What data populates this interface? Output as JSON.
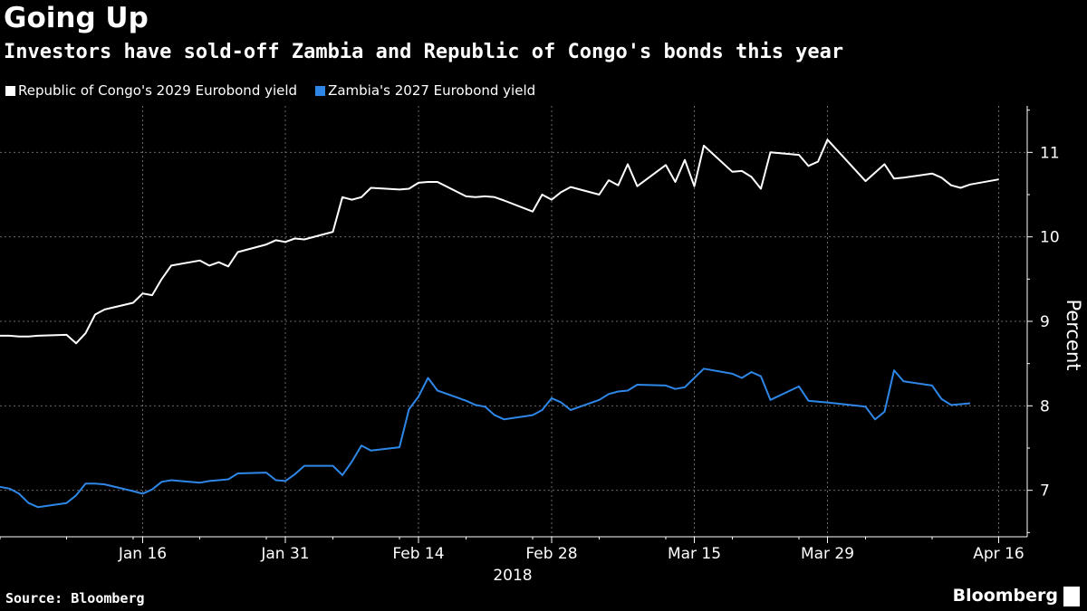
{
  "chart_data": {
    "type": "line",
    "title": "Going Up",
    "subtitle": "Investors have sold-off Zambia and Republic of Congo's bonds this year",
    "ylabel": "Percent",
    "xlabel": "2018",
    "ylim": [
      6.45,
      11.55
    ],
    "y_ticks": [
      7,
      8,
      9,
      10,
      11
    ],
    "x_range": [
      "2018-01-01",
      "2018-04-19"
    ],
    "x_ticks": [
      {
        "date": "2018-01-16",
        "label": "Jan 16"
      },
      {
        "date": "2018-01-31",
        "label": "Jan 31"
      },
      {
        "date": "2018-02-14",
        "label": "Feb 14"
      },
      {
        "date": "2018-02-28",
        "label": "Feb 28"
      },
      {
        "date": "2018-03-15",
        "label": "Mar 15"
      },
      {
        "date": "2018-03-29",
        "label": "Mar 29"
      },
      {
        "date": "2018-04-16",
        "label": "Apr 16"
      }
    ],
    "grid": true,
    "legend_position": "top-left",
    "series": [
      {
        "name": "Republic of Congo's 2029 Eurobond yield",
        "color": "#ffffff",
        "points": [
          [
            "2018-01-01",
            8.83
          ],
          [
            "2018-01-02",
            8.83
          ],
          [
            "2018-01-03",
            8.82
          ],
          [
            "2018-01-04",
            8.82
          ],
          [
            "2018-01-05",
            8.83
          ],
          [
            "2018-01-08",
            8.84
          ],
          [
            "2018-01-09",
            8.74
          ],
          [
            "2018-01-10",
            8.86
          ],
          [
            "2018-01-11",
            9.08
          ],
          [
            "2018-01-12",
            9.14
          ],
          [
            "2018-01-15",
            9.22
          ],
          [
            "2018-01-16",
            9.33
          ],
          [
            "2018-01-17",
            9.31
          ],
          [
            "2018-01-18",
            9.5
          ],
          [
            "2018-01-19",
            9.66
          ],
          [
            "2018-01-22",
            9.72
          ],
          [
            "2018-01-23",
            9.66
          ],
          [
            "2018-01-24",
            9.7
          ],
          [
            "2018-01-25",
            9.65
          ],
          [
            "2018-01-26",
            9.82
          ],
          [
            "2018-01-29",
            9.91
          ],
          [
            "2018-01-30",
            9.96
          ],
          [
            "2018-01-31",
            9.94
          ],
          [
            "2018-02-01",
            9.98
          ],
          [
            "2018-02-02",
            9.97
          ],
          [
            "2018-02-05",
            10.06
          ],
          [
            "2018-02-06",
            10.47
          ],
          [
            "2018-02-07",
            10.44
          ],
          [
            "2018-02-08",
            10.47
          ],
          [
            "2018-02-09",
            10.58
          ],
          [
            "2018-02-12",
            10.56
          ],
          [
            "2018-02-13",
            10.57
          ],
          [
            "2018-02-14",
            10.64
          ],
          [
            "2018-02-15",
            10.65
          ],
          [
            "2018-02-16",
            10.65
          ],
          [
            "2018-02-19",
            10.48
          ],
          [
            "2018-02-20",
            10.47
          ],
          [
            "2018-02-21",
            10.48
          ],
          [
            "2018-02-22",
            10.47
          ],
          [
            "2018-02-23",
            10.43
          ],
          [
            "2018-02-26",
            10.3
          ],
          [
            "2018-02-27",
            10.5
          ],
          [
            "2018-02-28",
            10.44
          ],
          [
            "2018-03-01",
            10.53
          ],
          [
            "2018-03-02",
            10.59
          ],
          [
            "2018-03-05",
            10.5
          ],
          [
            "2018-03-06",
            10.67
          ],
          [
            "2018-03-07",
            10.61
          ],
          [
            "2018-03-08",
            10.86
          ],
          [
            "2018-03-09",
            10.6
          ],
          [
            "2018-03-12",
            10.85
          ],
          [
            "2018-03-13",
            10.65
          ],
          [
            "2018-03-14",
            10.91
          ],
          [
            "2018-03-15",
            10.6
          ],
          [
            "2018-03-16",
            11.08
          ],
          [
            "2018-03-19",
            10.77
          ],
          [
            "2018-03-20",
            10.78
          ],
          [
            "2018-03-21",
            10.71
          ],
          [
            "2018-03-22",
            10.57
          ],
          [
            "2018-03-23",
            11.0
          ],
          [
            "2018-03-26",
            10.97
          ],
          [
            "2018-03-27",
            10.84
          ],
          [
            "2018-03-28",
            10.89
          ],
          [
            "2018-03-29",
            11.15
          ],
          [
            "2018-04-02",
            10.66
          ],
          [
            "2018-04-03",
            10.76
          ],
          [
            "2018-04-04",
            10.86
          ],
          [
            "2018-04-05",
            10.69
          ],
          [
            "2018-04-06",
            10.7
          ],
          [
            "2018-04-09",
            10.75
          ],
          [
            "2018-04-10",
            10.7
          ],
          [
            "2018-04-11",
            10.61
          ],
          [
            "2018-04-12",
            10.58
          ],
          [
            "2018-04-13",
            10.62
          ],
          [
            "2018-04-16",
            10.68
          ]
        ]
      },
      {
        "name": "Zambia's 2027 Eurobond yield",
        "color": "#2e86e6",
        "points": [
          [
            "2018-01-01",
            7.04
          ],
          [
            "2018-01-02",
            7.02
          ],
          [
            "2018-01-03",
            6.96
          ],
          [
            "2018-01-04",
            6.85
          ],
          [
            "2018-01-05",
            6.8
          ],
          [
            "2018-01-08",
            6.85
          ],
          [
            "2018-01-09",
            6.94
          ],
          [
            "2018-01-10",
            7.08
          ],
          [
            "2018-01-11",
            7.08
          ],
          [
            "2018-01-12",
            7.07
          ],
          [
            "2018-01-15",
            6.99
          ],
          [
            "2018-01-16",
            6.96
          ],
          [
            "2018-01-17",
            7.01
          ],
          [
            "2018-01-18",
            7.1
          ],
          [
            "2018-01-19",
            7.12
          ],
          [
            "2018-01-22",
            7.09
          ],
          [
            "2018-01-23",
            7.11
          ],
          [
            "2018-01-24",
            7.12
          ],
          [
            "2018-01-25",
            7.13
          ],
          [
            "2018-01-26",
            7.2
          ],
          [
            "2018-01-29",
            7.21
          ],
          [
            "2018-01-30",
            7.12
          ],
          [
            "2018-01-31",
            7.11
          ],
          [
            "2018-02-01",
            7.19
          ],
          [
            "2018-02-02",
            7.29
          ],
          [
            "2018-02-05",
            7.29
          ],
          [
            "2018-02-06",
            7.18
          ],
          [
            "2018-02-07",
            7.34
          ],
          [
            "2018-02-08",
            7.53
          ],
          [
            "2018-02-09",
            7.47
          ],
          [
            "2018-02-12",
            7.51
          ],
          [
            "2018-02-13",
            7.96
          ],
          [
            "2018-02-14",
            8.11
          ],
          [
            "2018-02-15",
            8.33
          ],
          [
            "2018-02-16",
            8.18
          ],
          [
            "2018-02-19",
            8.06
          ],
          [
            "2018-02-20",
            8.01
          ],
          [
            "2018-02-21",
            7.99
          ],
          [
            "2018-02-22",
            7.89
          ],
          [
            "2018-02-23",
            7.84
          ],
          [
            "2018-02-26",
            7.89
          ],
          [
            "2018-02-27",
            7.95
          ],
          [
            "2018-02-28",
            8.09
          ],
          [
            "2018-03-01",
            8.04
          ],
          [
            "2018-03-02",
            7.95
          ],
          [
            "2018-03-05",
            8.07
          ],
          [
            "2018-03-06",
            8.14
          ],
          [
            "2018-03-07",
            8.17
          ],
          [
            "2018-03-08",
            8.18
          ],
          [
            "2018-03-09",
            8.25
          ],
          [
            "2018-03-12",
            8.24
          ],
          [
            "2018-03-13",
            8.2
          ],
          [
            "2018-03-14",
            8.22
          ],
          [
            "2018-03-15",
            8.33
          ],
          [
            "2018-03-16",
            8.44
          ],
          [
            "2018-03-19",
            8.38
          ],
          [
            "2018-03-20",
            8.33
          ],
          [
            "2018-03-21",
            8.4
          ],
          [
            "2018-03-22",
            8.35
          ],
          [
            "2018-03-23",
            8.07
          ],
          [
            "2018-03-26",
            8.23
          ],
          [
            "2018-03-27",
            8.06
          ],
          [
            "2018-03-28",
            8.05
          ],
          [
            "2018-03-29",
            8.04
          ],
          [
            "2018-04-02",
            7.99
          ],
          [
            "2018-04-03",
            7.84
          ],
          [
            "2018-04-04",
            7.93
          ],
          [
            "2018-04-05",
            8.42
          ],
          [
            "2018-04-06",
            8.29
          ],
          [
            "2018-04-09",
            8.24
          ],
          [
            "2018-04-10",
            8.08
          ],
          [
            "2018-04-11",
            8.01
          ],
          [
            "2018-04-12",
            8.02
          ],
          [
            "2018-04-13",
            8.03
          ]
        ]
      }
    ]
  },
  "footer": {
    "source": "Source: Bloomberg",
    "brand": "Bloomberg"
  }
}
